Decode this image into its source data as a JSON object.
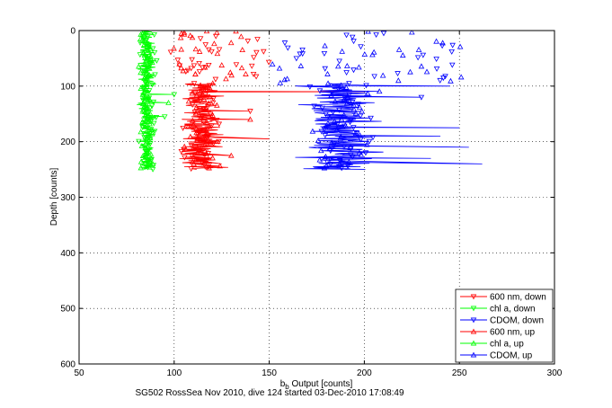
{
  "caption": "SG502 RossSea Nov 2010, dive 124 started 03-Dec-2010 17:08:49",
  "chart_data": {
    "type": "scatter",
    "xlabel": "b_b Output [counts]",
    "xlabel_main": "b",
    "xlabel_sub": "b",
    "xlabel_rest": " Output [counts]",
    "ylabel": "Depth [counts]",
    "xlim": [
      50,
      300
    ],
    "ylim": [
      600,
      0
    ],
    "y_reversed": true,
    "grid": true,
    "legend_placement": "bottom-right",
    "x_ticks": [
      "50",
      "100",
      "150",
      "200",
      "250",
      "300"
    ],
    "y_ticks": [
      "0",
      "100",
      "200",
      "300",
      "400",
      "500",
      "600"
    ],
    "series": [
      {
        "name": "600 nm, down",
        "color": "#ff0000",
        "marker": "triangle-down",
        "scatter_surface": {
          "depth": [
            0,
            90
          ],
          "x": [
            97,
            150
          ]
        },
        "band": {
          "depth": [
            95,
            250
          ],
          "x": [
            100,
            130
          ]
        },
        "spikes": [
          [
            110,
            200
          ],
          [
            145,
            140
          ],
          [
            195,
            150
          ],
          [
            240,
            125
          ]
        ]
      },
      {
        "name": "chl a, down",
        "color": "#00ff00",
        "marker": "triangle-down",
        "band": {
          "depth": [
            0,
            250
          ],
          "x": [
            80,
            92
          ]
        },
        "spikes": [
          [
            115,
            100
          ],
          [
            155,
            95
          ]
        ]
      },
      {
        "name": "CDOM, down",
        "color": "#0000ff",
        "marker": "triangle-down",
        "scatter_surface": {
          "depth": [
            0,
            95
          ],
          "x": [
            150,
            250
          ]
        },
        "band": {
          "depth": [
            95,
            250
          ],
          "x": [
            160,
            215
          ]
        },
        "spikes": [
          [
            100,
            245
          ],
          [
            175,
            250
          ],
          [
            210,
            255
          ],
          [
            240,
            262
          ],
          [
            120,
            230
          ]
        ]
      },
      {
        "name": "600 nm, up",
        "color": "#ff0000",
        "marker": "triangle-up",
        "scatter_surface": {
          "depth": [
            0,
            90
          ],
          "x": [
            98,
            140
          ]
        },
        "band": {
          "depth": [
            95,
            250
          ],
          "x": [
            100,
            128
          ]
        },
        "spikes": [
          [
            160,
            140
          ],
          [
            225,
            130
          ]
        ]
      },
      {
        "name": "chl a, up",
        "color": "#00ff00",
        "marker": "triangle-up",
        "band": {
          "depth": [
            0,
            250
          ],
          "x": [
            80,
            90
          ]
        },
        "spikes": [
          [
            130,
            97
          ]
        ]
      },
      {
        "name": "CDOM, up",
        "color": "#0000ff",
        "marker": "triangle-up",
        "scatter_surface": {
          "depth": [
            0,
            95
          ],
          "x": [
            150,
            255
          ]
        },
        "band": {
          "depth": [
            95,
            250
          ],
          "x": [
            162,
            212
          ]
        },
        "spikes": [
          [
            190,
            240
          ],
          [
            230,
            235
          ]
        ]
      }
    ]
  }
}
